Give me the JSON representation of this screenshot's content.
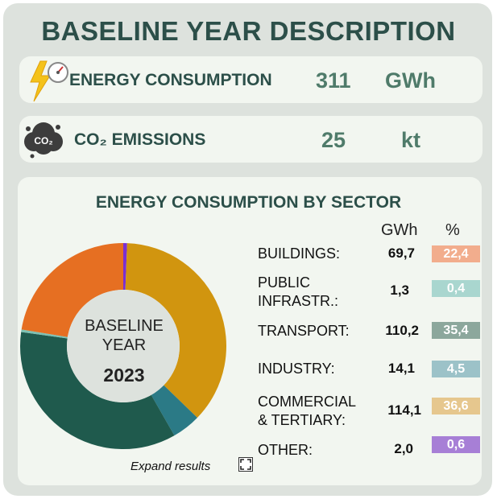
{
  "title": "BASELINE YEAR DESCRIPTION",
  "energy": {
    "label": "ENERGY CONSUMPTION",
    "value": "311",
    "unit": "GWh",
    "icon": "lightning-gauge-icon"
  },
  "emissions": {
    "label": "CO₂ EMISSIONS",
    "value": "25",
    "unit": "kt",
    "icon": "co2-cloud-icon",
    "icon_text": "CO₂"
  },
  "sector": {
    "title": "ENERGY CONSUMPTION BY SECTOR",
    "col_gwh": "GWh",
    "col_pct": "%",
    "center_line1": "BASELINE",
    "center_line2": "YEAR",
    "center_year": "2023",
    "expand_label": "Expand results",
    "rows": [
      {
        "label1": "BUILDINGS:",
        "label2": "",
        "gwh": "69,7",
        "pct": "22,4",
        "color": "#f2ad8d"
      },
      {
        "label1": "PUBLIC",
        "label2": "INFRASTR.:",
        "gwh": "1,3",
        "pct": "0,4",
        "color": "#a9d6cf"
      },
      {
        "label1": "TRANSPORT:",
        "label2": "",
        "gwh": "110,2",
        "pct": "35,4",
        "color": "#8ca79c"
      },
      {
        "label1": "INDUSTRY:",
        "label2": "",
        "gwh": "14,1",
        "pct": "4,5",
        "color": "#9cc2c8"
      },
      {
        "label1": "COMMERCIAL",
        "label2": "& TERTIARY:",
        "gwh": "114,1",
        "pct": "36,6",
        "color": "#e6c78e"
      },
      {
        "label1": "OTHER:",
        "label2": "",
        "gwh": "2,0",
        "pct": "0,6",
        "color": "#a77fd6"
      }
    ]
  },
  "chart_data": {
    "type": "pie",
    "title": "ENERGY CONSUMPTION BY SECTOR",
    "slices": [
      {
        "name": "OTHER",
        "value": 0.6,
        "color": "#7b2fd1"
      },
      {
        "name": "COMMERCIAL & TERTIARY",
        "value": 36.6,
        "color": "#d1950f"
      },
      {
        "name": "INDUSTRY",
        "value": 4.5,
        "color": "#2b7a86"
      },
      {
        "name": "TRANSPORT",
        "value": 35.4,
        "color": "#1f5a4d"
      },
      {
        "name": "PUBLIC INFRASTR.",
        "value": 0.4,
        "color": "#7cc1b3"
      },
      {
        "name": "BUILDINGS",
        "value": 22.4,
        "color": "#e66f22"
      }
    ]
  }
}
